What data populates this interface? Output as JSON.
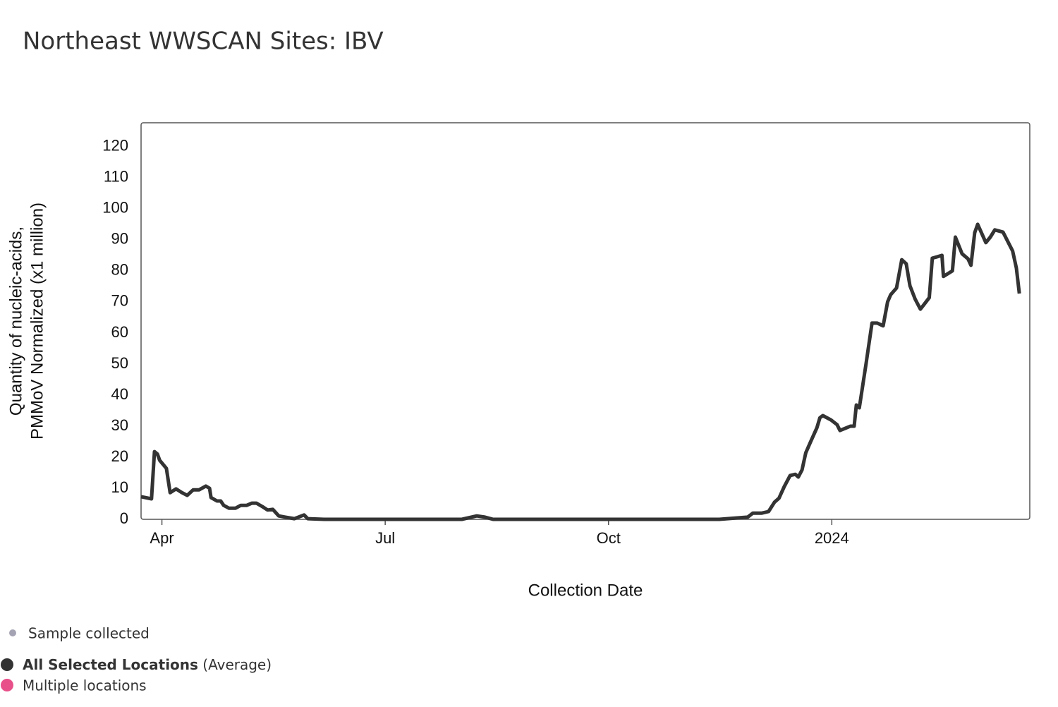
{
  "chart_data": {
    "type": "line",
    "title": "Northeast WWSCAN Sites: IBV",
    "x_label": "Collection Date",
    "y_label": [
      "Quantity of nucleic-acids,",
      "PMMoV Normalized (x1 million)"
    ],
    "x": [
      3.72,
      3.86,
      3.9,
      3.94,
      3.97,
      4.06,
      4.11,
      4.19,
      4.27,
      4.34,
      4.42,
      4.5,
      4.59,
      4.64,
      4.66,
      4.74,
      4.79,
      4.83,
      4.9,
      4.99,
      5.06,
      5.14,
      5.21,
      5.27,
      5.35,
      5.42,
      5.49,
      5.57,
      5.66,
      5.78,
      5.91,
      5.96,
      6.18,
      8.03,
      8.23,
      8.34,
      8.45,
      11.49,
      11.87,
      11.94,
      12.06,
      12.15,
      12.23,
      12.29,
      12.36,
      12.44,
      12.51,
      12.55,
      12.6,
      12.65,
      12.72,
      12.8,
      12.84,
      12.88,
      12.99,
      13.07,
      13.11,
      13.2,
      13.25,
      13.3,
      13.33,
      13.37,
      13.46,
      13.54,
      13.61,
      13.69,
      13.75,
      13.79,
      13.87,
      13.94,
      14.0,
      14.05,
      14.12,
      14.19,
      14.23,
      14.31,
      14.35,
      14.41,
      14.48,
      14.5,
      14.62,
      14.66,
      14.75,
      14.83,
      14.87,
      14.92,
      14.96,
      15.07,
      15.13,
      15.19,
      15.3,
      15.43,
      15.48,
      15.52
    ],
    "series": [
      {
        "name": "All Selected Locations",
        "name_suffix": "(Average)",
        "color": "#333333",
        "values": [
          7.3,
          6.6,
          21.8,
          21,
          19,
          16.4,
          8.6,
          9.8,
          8.6,
          7.7,
          9.5,
          9.5,
          10.7,
          10,
          7,
          5.9,
          5.9,
          4.5,
          3.6,
          3.6,
          4.5,
          4.5,
          5.2,
          5.2,
          4.1,
          3,
          3.2,
          1.1,
          0.7,
          0.2,
          1.4,
          0.2,
          0,
          0,
          1.1,
          0.7,
          0,
          0,
          0.7,
          2,
          2,
          2.5,
          5.5,
          6.8,
          10.5,
          14.1,
          14.5,
          13.6,
          15.9,
          21.4,
          25.2,
          29.5,
          32.7,
          33.4,
          32,
          30.5,
          28.6,
          29.5,
          30,
          30,
          36.8,
          35.9,
          50,
          63.2,
          63.2,
          62.3,
          70,
          72.3,
          74.5,
          83.6,
          82.3,
          75.2,
          70.9,
          67.7,
          68.9,
          71.4,
          84.1,
          84.5,
          85,
          78.2,
          80,
          90.9,
          85.5,
          83.9,
          81.8,
          92.3,
          95,
          89.1,
          90.9,
          93.2,
          92.5,
          86.4,
          80.9,
          72.7
        ]
      }
    ],
    "legend_extra": [
      {
        "name": "Sample collected",
        "color": "#a3a3b3"
      },
      {
        "name": "Multiple locations",
        "color": "#e8508a"
      }
    ],
    "xlim": [
      3.72,
      15.66
    ],
    "xticks": [
      {
        "value": 4,
        "label": "Apr"
      },
      {
        "value": 7,
        "label": "Jul"
      },
      {
        "value": 10,
        "label": "Oct"
      },
      {
        "value": 13,
        "label": "2024"
      }
    ],
    "ylim": [
      0,
      127.7
    ],
    "yticks": [
      0,
      10,
      20,
      30,
      40,
      50,
      60,
      70,
      80,
      90,
      100,
      110,
      120
    ],
    "grid": false
  }
}
